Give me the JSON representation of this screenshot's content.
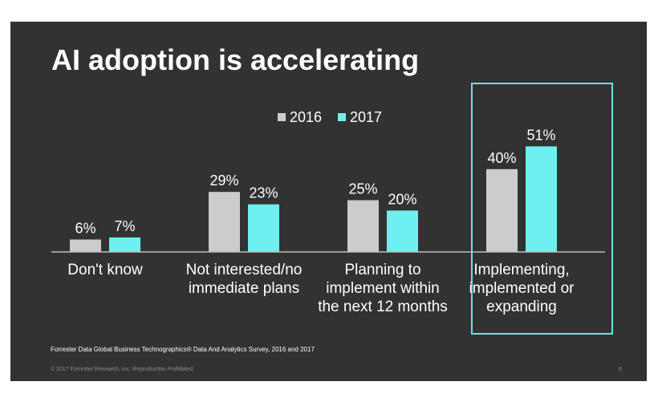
{
  "slide": {
    "title": "AI adoption is accelerating",
    "source": "Forrester Data Global Business Technographics® Data And Analytics Survey, 2016 and 2017",
    "copyright": "© 2017 Forrester Research, Inc. Reproduction Prohibited",
    "page_number": "8"
  },
  "chart_data": {
    "type": "bar",
    "categories": [
      "Don't know",
      "Not interested/no\nimmediate plans",
      "Planning to\nimplement within\nthe next 12 months",
      "Implementing,\nimplemented or\nexpanding"
    ],
    "series": [
      {
        "name": "2016",
        "values": [
          6,
          29,
          25,
          40
        ],
        "labels": [
          "6%",
          "29%",
          "25%",
          "40%"
        ],
        "color": "#cccccc"
      },
      {
        "name": "2017",
        "values": [
          7,
          23,
          20,
          51
        ],
        "labels": [
          "7%",
          "23%",
          "20%",
          "51%"
        ],
        "color": "#6ff0f0"
      }
    ],
    "ylim": [
      0,
      60
    ],
    "grid": false,
    "legend": "top-center",
    "highlight_category": 3,
    "highlight_color": "#6fe0e0"
  }
}
